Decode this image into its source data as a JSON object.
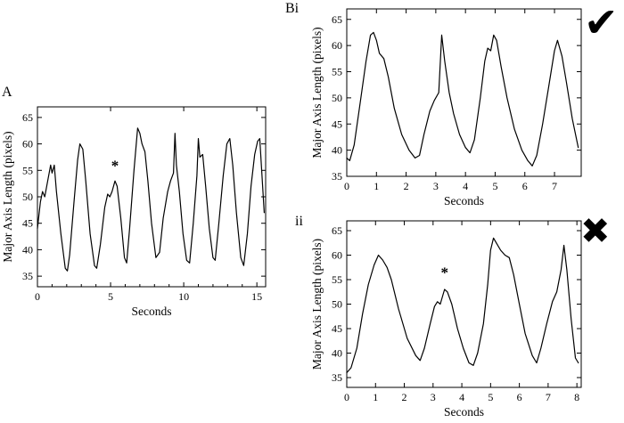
{
  "figure": {
    "correct_mark": "✔",
    "incorrect_mark": "✖",
    "line_color": "#000000",
    "background": "#ffffff"
  },
  "panels": [
    {
      "id": "A",
      "label": "A",
      "verdict": ""
    },
    {
      "id": "Bi",
      "label": "Bi",
      "verdict": "correct"
    },
    {
      "id": "ii",
      "label": "ii",
      "verdict": "incorrect"
    }
  ],
  "chart_data": [
    {
      "type": "line",
      "title": "",
      "xlabel": "Seconds",
      "ylabel": "Major Axis Length (pixels)",
      "xlim": [
        0,
        15.6
      ],
      "ylim": [
        33,
        67
      ],
      "xticks": [
        0,
        5,
        10,
        15
      ],
      "xminor": [
        1,
        2,
        3,
        4,
        6,
        7,
        8,
        9,
        11,
        12,
        13,
        14
      ],
      "yticks": [
        35,
        40,
        45,
        50,
        55,
        60,
        65
      ],
      "grid": false,
      "annotations": [
        {
          "text": "*",
          "x": 5.3,
          "y": 55
        }
      ],
      "points": [
        [
          0,
          44
        ],
        [
          0.2,
          49
        ],
        [
          0.35,
          51
        ],
        [
          0.5,
          50
        ],
        [
          0.7,
          53
        ],
        [
          0.9,
          56
        ],
        [
          1.0,
          54.5
        ],
        [
          1.15,
          56
        ],
        [
          1.3,
          51
        ],
        [
          1.6,
          43
        ],
        [
          1.9,
          36.5
        ],
        [
          2.05,
          36
        ],
        [
          2.2,
          39
        ],
        [
          2.5,
          49
        ],
        [
          2.75,
          57
        ],
        [
          2.9,
          60
        ],
        [
          3.1,
          59
        ],
        [
          3.3,
          53
        ],
        [
          3.6,
          43
        ],
        [
          3.9,
          37
        ],
        [
          4.05,
          36.5
        ],
        [
          4.3,
          41
        ],
        [
          4.6,
          48
        ],
        [
          4.8,
          50.5
        ],
        [
          4.95,
          50
        ],
        [
          5.1,
          51
        ],
        [
          5.3,
          53
        ],
        [
          5.45,
          52
        ],
        [
          5.7,
          46
        ],
        [
          5.95,
          38.5
        ],
        [
          6.1,
          37.5
        ],
        [
          6.3,
          44
        ],
        [
          6.6,
          55
        ],
        [
          6.85,
          63
        ],
        [
          7.0,
          62
        ],
        [
          7.15,
          60
        ],
        [
          7.35,
          58.5
        ],
        [
          7.55,
          53
        ],
        [
          7.8,
          45
        ],
        [
          8.1,
          38.5
        ],
        [
          8.35,
          39.5
        ],
        [
          8.6,
          46
        ],
        [
          8.9,
          51
        ],
        [
          9.1,
          53
        ],
        [
          9.3,
          54.5
        ],
        [
          9.4,
          62
        ],
        [
          9.5,
          56
        ],
        [
          9.7,
          51
        ],
        [
          9.95,
          43
        ],
        [
          10.2,
          38
        ],
        [
          10.4,
          37.5
        ],
        [
          10.65,
          45
        ],
        [
          10.9,
          54
        ],
        [
          11.0,
          61
        ],
        [
          11.1,
          57.5
        ],
        [
          11.3,
          58
        ],
        [
          11.5,
          52
        ],
        [
          11.75,
          44
        ],
        [
          12.0,
          38.5
        ],
        [
          12.15,
          38
        ],
        [
          12.4,
          45
        ],
        [
          12.7,
          54
        ],
        [
          12.95,
          60
        ],
        [
          13.15,
          61
        ],
        [
          13.35,
          56
        ],
        [
          13.6,
          47
        ],
        [
          13.9,
          38.5
        ],
        [
          14.1,
          37
        ],
        [
          14.35,
          43
        ],
        [
          14.6,
          52
        ],
        [
          14.85,
          58
        ],
        [
          15.05,
          60.5
        ],
        [
          15.2,
          61
        ],
        [
          15.35,
          54
        ],
        [
          15.5,
          47
        ]
      ]
    },
    {
      "type": "line",
      "title": "",
      "xlabel": "Seconds",
      "ylabel": "Major Axis Length (pixels)",
      "xlim": [
        0,
        7.9
      ],
      "ylim": [
        35,
        67
      ],
      "xticks": [
        0,
        1,
        2,
        3,
        4,
        5,
        6,
        7
      ],
      "xminor": [],
      "yticks": [
        35,
        40,
        45,
        50,
        55,
        60,
        65
      ],
      "grid": false,
      "annotations": [],
      "points": [
        [
          0,
          38.5
        ],
        [
          0.1,
          38
        ],
        [
          0.25,
          41
        ],
        [
          0.45,
          49
        ],
        [
          0.65,
          57
        ],
        [
          0.8,
          62
        ],
        [
          0.9,
          62.5
        ],
        [
          1.0,
          61
        ],
        [
          1.1,
          58.5
        ],
        [
          1.25,
          57.5
        ],
        [
          1.4,
          54
        ],
        [
          1.6,
          48
        ],
        [
          1.85,
          43
        ],
        [
          2.1,
          40
        ],
        [
          2.3,
          38.5
        ],
        [
          2.45,
          39
        ],
        [
          2.6,
          43
        ],
        [
          2.8,
          47.5
        ],
        [
          2.95,
          49.5
        ],
        [
          3.1,
          51
        ],
        [
          3.2,
          62
        ],
        [
          3.3,
          57
        ],
        [
          3.45,
          51
        ],
        [
          3.6,
          47
        ],
        [
          3.8,
          43
        ],
        [
          4.0,
          40.5
        ],
        [
          4.15,
          39.5
        ],
        [
          4.3,
          42
        ],
        [
          4.5,
          50
        ],
        [
          4.65,
          57
        ],
        [
          4.75,
          59.5
        ],
        [
          4.85,
          59
        ],
        [
          4.95,
          62
        ],
        [
          5.05,
          61
        ],
        [
          5.2,
          56
        ],
        [
          5.4,
          50
        ],
        [
          5.65,
          44
        ],
        [
          5.9,
          40
        ],
        [
          6.1,
          38
        ],
        [
          6.25,
          37
        ],
        [
          6.4,
          39
        ],
        [
          6.6,
          45
        ],
        [
          6.8,
          52
        ],
        [
          7.0,
          59
        ],
        [
          7.1,
          61
        ],
        [
          7.25,
          58
        ],
        [
          7.4,
          53
        ],
        [
          7.6,
          46
        ],
        [
          7.8,
          40.5
        ]
      ]
    },
    {
      "type": "line",
      "title": "",
      "xlabel": "Seconds",
      "ylabel": "Major Axis Length (pixels)",
      "xlim": [
        0,
        8.15
      ],
      "ylim": [
        33,
        67
      ],
      "xticks": [
        0,
        1,
        2,
        3,
        4,
        5,
        6,
        7,
        8
      ],
      "xminor": [],
      "yticks": [
        35,
        40,
        45,
        50,
        55,
        60,
        65
      ],
      "grid": false,
      "annotations": [
        {
          "text": "*",
          "x": 3.4,
          "y": 55.5
        }
      ],
      "points": [
        [
          0,
          36
        ],
        [
          0.15,
          37
        ],
        [
          0.35,
          41
        ],
        [
          0.55,
          48
        ],
        [
          0.75,
          54
        ],
        [
          0.95,
          58
        ],
        [
          1.1,
          60
        ],
        [
          1.25,
          59
        ],
        [
          1.4,
          57.5
        ],
        [
          1.55,
          55
        ],
        [
          1.8,
          49
        ],
        [
          2.1,
          43
        ],
        [
          2.4,
          39.5
        ],
        [
          2.55,
          38.5
        ],
        [
          2.7,
          41
        ],
        [
          2.9,
          46
        ],
        [
          3.05,
          49.5
        ],
        [
          3.15,
          50.5
        ],
        [
          3.25,
          50
        ],
        [
          3.4,
          53
        ],
        [
          3.5,
          52.5
        ],
        [
          3.65,
          50
        ],
        [
          3.85,
          45
        ],
        [
          4.05,
          41
        ],
        [
          4.25,
          38
        ],
        [
          4.4,
          37.5
        ],
        [
          4.55,
          40
        ],
        [
          4.75,
          46
        ],
        [
          4.9,
          54
        ],
        [
          5.0,
          61
        ],
        [
          5.1,
          63.5
        ],
        [
          5.2,
          62.5
        ],
        [
          5.35,
          61
        ],
        [
          5.5,
          60
        ],
        [
          5.65,
          59.5
        ],
        [
          5.8,
          56
        ],
        [
          6.0,
          50
        ],
        [
          6.2,
          44
        ],
        [
          6.45,
          39.5
        ],
        [
          6.6,
          38
        ],
        [
          6.75,
          41
        ],
        [
          6.95,
          46
        ],
        [
          7.15,
          50.5
        ],
        [
          7.3,
          52.5
        ],
        [
          7.45,
          57
        ],
        [
          7.55,
          62
        ],
        [
          7.65,
          57
        ],
        [
          7.8,
          47
        ],
        [
          7.95,
          39
        ],
        [
          8.05,
          38
        ]
      ]
    }
  ]
}
